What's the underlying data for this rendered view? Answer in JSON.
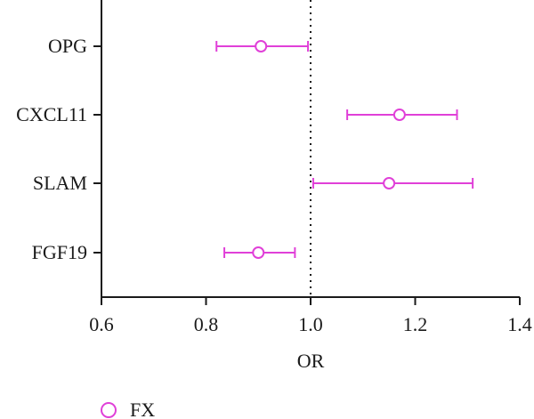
{
  "chart_data": {
    "type": "forest",
    "xlabel": "OR",
    "xlim": [
      0.6,
      1.4
    ],
    "xticks": [
      0.6,
      0.8,
      1.0,
      1.2,
      1.4
    ],
    "xtick_labels": [
      "0.6",
      "0.8",
      "1.0",
      "1.2",
      "1.4"
    ],
    "reference_line": 1.0,
    "categories": [
      "OPG",
      "CXCL11",
      "SLAM",
      "FGF19"
    ],
    "series": [
      {
        "name": "FX",
        "color": "#e040d8",
        "marker": "open-circle",
        "points": [
          {
            "label": "OPG",
            "or": 0.905,
            "lower": 0.82,
            "upper": 0.995
          },
          {
            "label": "CXCL11",
            "or": 1.17,
            "lower": 1.07,
            "upper": 1.28
          },
          {
            "label": "SLAM",
            "or": 1.15,
            "lower": 1.005,
            "upper": 1.31
          },
          {
            "label": "FGF19",
            "or": 0.9,
            "lower": 0.835,
            "upper": 0.97
          }
        ]
      }
    ],
    "grid": false,
    "legend_position": "bottom-left"
  }
}
